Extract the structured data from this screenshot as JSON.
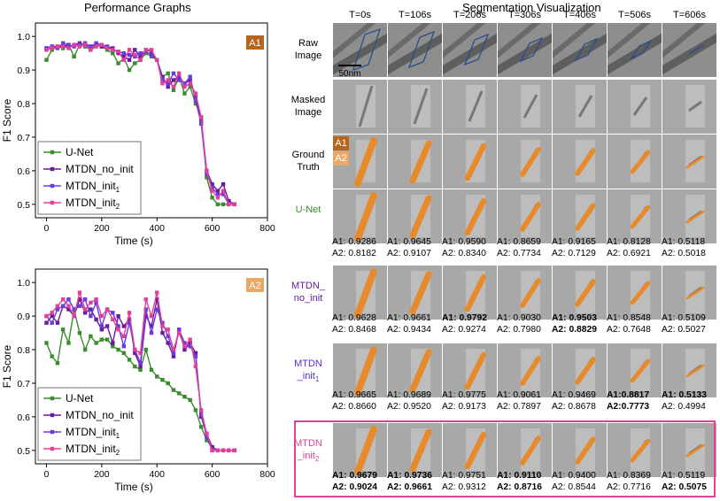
{
  "left_title": "Performance Graphs",
  "right_title": "Segmentation Visualization",
  "colors": {
    "unet": "#3a8c2e",
    "no_init": "#6a1b9a",
    "init1": "#6a3be0",
    "init2": "#e0409a",
    "badge_a1": "#b5651d",
    "badge_a2": "#e8a868",
    "orange": "#e8892a"
  },
  "chart_data": [
    {
      "type": "line",
      "badge": "A1",
      "xlabel": "Time (s)",
      "ylabel": "F1 Score",
      "xlim": [
        -40,
        800
      ],
      "ylim": [
        0.46,
        1.04
      ],
      "xticks": [
        0,
        200,
        400,
        600,
        800
      ],
      "yticks": [
        0.5,
        0.6,
        0.7,
        0.8,
        0.9,
        1.0
      ],
      "x": [
        0,
        20,
        40,
        60,
        80,
        100,
        120,
        140,
        160,
        180,
        200,
        220,
        240,
        260,
        280,
        300,
        320,
        340,
        360,
        380,
        400,
        420,
        440,
        460,
        480,
        500,
        520,
        540,
        560,
        580,
        600,
        620,
        640,
        660,
        680
      ],
      "series": [
        {
          "name": "U-Net",
          "key": "unet",
          "values": [
            0.93,
            0.96,
            0.97,
            0.965,
            0.975,
            0.94,
            0.975,
            0.97,
            0.96,
            0.975,
            0.97,
            0.96,
            0.95,
            0.92,
            0.935,
            0.9,
            0.92,
            0.93,
            0.95,
            0.94,
            0.93,
            0.88,
            0.89,
            0.84,
            0.88,
            0.83,
            0.85,
            0.8,
            0.76,
            0.58,
            0.52,
            0.5,
            0.5,
            0.5,
            0.5
          ]
        },
        {
          "name": "MTDN_no_init",
          "key": "no_init",
          "values": [
            0.965,
            0.97,
            0.97,
            0.975,
            0.97,
            0.975,
            0.98,
            0.975,
            0.97,
            0.975,
            0.97,
            0.97,
            0.965,
            0.95,
            0.94,
            0.93,
            0.96,
            0.94,
            0.96,
            0.955,
            0.93,
            0.88,
            0.85,
            0.87,
            0.88,
            0.86,
            0.87,
            0.82,
            0.75,
            0.6,
            0.56,
            0.54,
            0.56,
            0.51,
            0.5
          ]
        },
        {
          "name": "MTDN_init1",
          "key": "init1",
          "values": [
            0.965,
            0.97,
            0.965,
            0.98,
            0.975,
            0.97,
            0.975,
            0.98,
            0.97,
            0.98,
            0.975,
            0.97,
            0.96,
            0.955,
            0.95,
            0.945,
            0.94,
            0.95,
            0.955,
            0.945,
            0.93,
            0.87,
            0.86,
            0.89,
            0.87,
            0.86,
            0.88,
            0.81,
            0.74,
            0.59,
            0.55,
            0.53,
            0.53,
            0.5,
            0.5
          ]
        },
        {
          "name": "MTDN_init2",
          "key": "init2",
          "values": [
            0.96,
            0.965,
            0.97,
            0.97,
            0.965,
            0.975,
            0.97,
            0.975,
            0.96,
            0.97,
            0.975,
            0.965,
            0.96,
            0.955,
            0.93,
            0.96,
            0.945,
            0.93,
            0.96,
            0.96,
            0.93,
            0.86,
            0.87,
            0.85,
            0.89,
            0.85,
            0.86,
            0.83,
            0.76,
            0.6,
            0.54,
            0.52,
            0.54,
            0.5,
            0.5
          ]
        }
      ],
      "legend": [
        "U-Net",
        "MTDN_no_init",
        "MTDN_init",
        "MTDN_init"
      ],
      "legend_subs": [
        "",
        "",
        "1",
        "2"
      ]
    },
    {
      "type": "line",
      "badge": "A2",
      "xlabel": "Time (s)",
      "ylabel": "F1 Score",
      "xlim": [
        -40,
        800
      ],
      "ylim": [
        0.46,
        1.04
      ],
      "xticks": [
        0,
        200,
        400,
        600,
        800
      ],
      "yticks": [
        0.5,
        0.6,
        0.7,
        0.8,
        0.9,
        1.0
      ],
      "x": [
        0,
        20,
        40,
        60,
        80,
        100,
        120,
        140,
        160,
        180,
        200,
        220,
        240,
        260,
        280,
        300,
        320,
        340,
        360,
        380,
        400,
        420,
        440,
        460,
        480,
        500,
        520,
        540,
        560,
        580,
        600,
        620,
        640,
        660,
        680
      ],
      "series": [
        {
          "name": "U-Net",
          "key": "unet",
          "values": [
            0.82,
            0.78,
            0.76,
            0.86,
            0.82,
            0.92,
            0.85,
            0.8,
            0.84,
            0.82,
            0.83,
            0.83,
            0.81,
            0.8,
            0.79,
            0.77,
            0.75,
            0.74,
            0.8,
            0.74,
            0.72,
            0.71,
            0.7,
            0.68,
            0.67,
            0.66,
            0.65,
            0.62,
            0.57,
            0.53,
            0.51,
            0.5,
            0.5,
            0.5,
            0.5
          ]
        },
        {
          "name": "MTDN_no_init",
          "key": "no_init",
          "values": [
            0.88,
            0.9,
            0.88,
            0.93,
            0.92,
            0.9,
            0.95,
            0.91,
            0.92,
            0.89,
            0.86,
            0.87,
            0.82,
            0.9,
            0.87,
            0.89,
            0.79,
            0.75,
            0.9,
            0.87,
            0.95,
            0.85,
            0.82,
            0.78,
            0.86,
            0.8,
            0.82,
            0.79,
            0.6,
            0.55,
            0.51,
            0.5,
            0.5,
            0.5,
            0.5
          ]
        },
        {
          "name": "MTDN_init1",
          "key": "init1",
          "values": [
            0.9,
            0.88,
            0.92,
            0.93,
            0.95,
            0.92,
            0.93,
            0.95,
            0.9,
            0.94,
            0.87,
            0.92,
            0.91,
            0.87,
            0.81,
            0.88,
            0.8,
            0.76,
            0.92,
            0.85,
            0.92,
            0.88,
            0.84,
            0.79,
            0.86,
            0.82,
            0.81,
            0.78,
            0.61,
            0.54,
            0.5,
            0.5,
            0.5,
            0.5,
            0.5
          ]
        },
        {
          "name": "MTDN_init2",
          "key": "init2",
          "values": [
            0.9,
            0.91,
            0.93,
            0.95,
            0.93,
            0.9,
            0.97,
            0.92,
            0.94,
            0.95,
            0.9,
            0.92,
            0.89,
            0.86,
            0.84,
            0.91,
            0.8,
            0.79,
            0.95,
            0.9,
            0.97,
            0.87,
            0.86,
            0.8,
            0.85,
            0.81,
            0.83,
            0.75,
            0.62,
            0.55,
            0.5,
            0.5,
            0.5,
            0.5,
            0.5
          ]
        }
      ],
      "legend": [
        "U-Net",
        "MTDN_no_init",
        "MTDN_init",
        "MTDN_init"
      ],
      "legend_subs": [
        "",
        "",
        "1",
        "2"
      ]
    }
  ],
  "grid": {
    "times": [
      "T=0s",
      "T=106s",
      "T=206s",
      "T=306s",
      "T=406s",
      "T=506s",
      "T=606s"
    ],
    "rows": [
      {
        "label1": "Raw",
        "label2": "Image",
        "type": "raw",
        "color": "#000000"
      },
      {
        "label1": "Masked",
        "label2": "Image",
        "type": "masked",
        "color": "#000000"
      },
      {
        "label1": "Ground",
        "label2": "Truth",
        "type": "gt",
        "color": "#000000"
      },
      {
        "label1": "U-Net",
        "label2": "",
        "type": "pred",
        "color": "#3a8c2e"
      },
      {
        "label1": "MTDN_",
        "label2": "no_init",
        "type": "pred",
        "color": "#6a1b9a"
      },
      {
        "label1": "MTDN",
        "label2": "_init",
        "sub": "1",
        "type": "pred",
        "color": "#5a2bd0"
      },
      {
        "label1": "MTDN",
        "label2": "_init",
        "sub": "2",
        "type": "pred",
        "color": "#e0409a"
      }
    ],
    "scale_bar": "50nm",
    "gt_badges": [
      "A1",
      "A2"
    ],
    "scores": [
      [
        [
          "A1: 0.9286",
          "A2: 0.8182"
        ],
        [
          "A1: 0.9645",
          "A2: 0.9107"
        ],
        [
          "A1: 0.9590",
          "A2: 0.8340"
        ],
        [
          "A1: 0.8659",
          "A2: 0.7734"
        ],
        [
          "A1: 0.9165",
          "A2: 0.7129"
        ],
        [
          "A1: 0.8128",
          "A2: 0.6921"
        ],
        [
          "A1: 0.5118",
          "A2: 0.5018"
        ]
      ],
      [
        [
          "A1: 0.9628",
          "A2: 0.8468"
        ],
        [
          "A1: 0.9661",
          "A2: 0.9434"
        ],
        [
          "A1: 0.9792",
          "A2: 0.9274"
        ],
        [
          "A1: 0.9030",
          "A2: 0.7980"
        ],
        [
          "A1: 0.9503",
          "A2: 0.8829"
        ],
        [
          "A1: 0.8548",
          "A2: 0.7648"
        ],
        [
          "A1: 0.5109",
          "A2: 0.5027"
        ]
      ],
      [
        [
          "A1: 0.9665",
          "A2: 0.8660"
        ],
        [
          "A1: 0.9689",
          "A2: 0.9520"
        ],
        [
          "A1: 0.9775",
          "A2: 0.9173"
        ],
        [
          "A1: 0.9061",
          "A2: 0.7897"
        ],
        [
          "A1: 0.9469",
          "A2: 0.8678"
        ],
        [
          "A1:0.8817",
          "A2:0.7773"
        ],
        [
          "A1: 0.5133",
          "A2: 0.4994"
        ]
      ],
      [
        [
          "A1: 0.9679",
          "A2: 0.9024"
        ],
        [
          "A1: 0.9736",
          "A2: 0.9661"
        ],
        [
          "A1: 0.9751",
          "A2: 0.9312"
        ],
        [
          "A1: 0.9110",
          "A2: 0.8716"
        ],
        [
          "A1: 0.9400",
          "A2: 0.8544"
        ],
        [
          "A1: 0.8369",
          "A2: 0.7716"
        ],
        [
          "A1: 0.5119",
          "A2: 0.5075"
        ]
      ]
    ],
    "bold": [
      [
        [
          false,
          false
        ],
        [
          false,
          false
        ],
        [
          false,
          false
        ],
        [
          false,
          false
        ],
        [
          false,
          false
        ],
        [
          false,
          false
        ],
        [
          false,
          false
        ]
      ],
      [
        [
          false,
          false
        ],
        [
          false,
          false
        ],
        [
          true,
          false
        ],
        [
          false,
          false
        ],
        [
          true,
          true
        ],
        [
          false,
          false
        ],
        [
          false,
          false
        ]
      ],
      [
        [
          false,
          false
        ],
        [
          false,
          false
        ],
        [
          false,
          false
        ],
        [
          false,
          false
        ],
        [
          false,
          false
        ],
        [
          true,
          true
        ],
        [
          true,
          false
        ]
      ],
      [
        [
          true,
          true
        ],
        [
          true,
          true
        ],
        [
          false,
          false
        ],
        [
          true,
          true
        ],
        [
          false,
          false
        ],
        [
          false,
          false
        ],
        [
          false,
          true
        ]
      ]
    ]
  }
}
